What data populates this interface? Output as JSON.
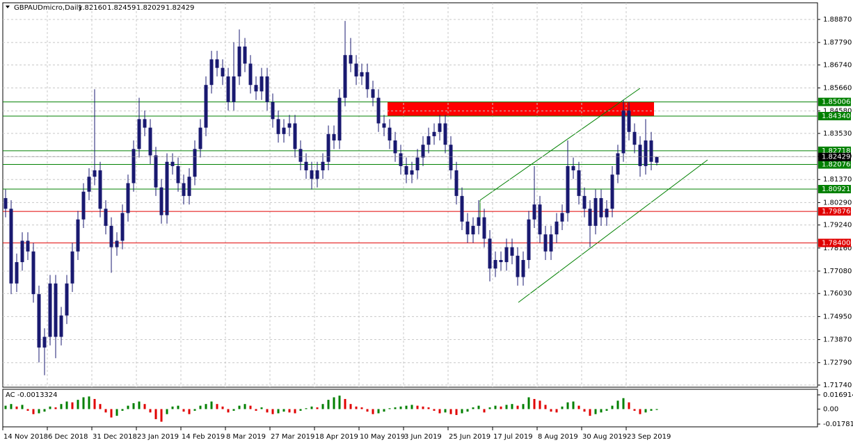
{
  "chart_data": {
    "type": "candlestick",
    "title": "GBPAUDmicro,Daily",
    "header_values": [
      "1.82160",
      "1.82459",
      "1.82029",
      "1.82429"
    ],
    "color": "#191970",
    "open": [
      1.805,
      1.8,
      1.765,
      1.775,
      1.785,
      1.78,
      1.76,
      1.735,
      1.74,
      1.765,
      1.74,
      1.75,
      1.765,
      1.78,
      1.795,
      1.808,
      1.815,
      1.818,
      1.8,
      1.792,
      1.782,
      1.785,
      1.798,
      1.812,
      1.828,
      1.842,
      1.838,
      1.825,
      1.81,
      1.797,
      1.822,
      1.82,
      1.812,
      1.806,
      1.815,
      1.828,
      1.838,
      1.858,
      1.87,
      1.866,
      1.862,
      1.85,
      1.862,
      1.876,
      1.868,
      1.858,
      1.855,
      1.862,
      1.85,
      1.842,
      1.835,
      1.838,
      1.84,
      1.828,
      1.822,
      1.818,
      1.814,
      1.818,
      1.822,
      1.835,
      1.832,
      1.852,
      1.872,
      1.868,
      1.862,
      1.864,
      1.856,
      1.852,
      1.84,
      1.838,
      1.832,
      1.826,
      1.82,
      1.816,
      1.818,
      1.824,
      1.83,
      1.834,
      1.836,
      1.84,
      1.83,
      1.818,
      1.806,
      1.794,
      1.788,
      1.792,
      1.796,
      1.786,
      1.772,
      1.776,
      1.775,
      1.782,
      1.778,
      1.768,
      1.776,
      1.795,
      1.802,
      1.788,
      1.78,
      1.788,
      1.794,
      1.798,
      1.82,
      1.818,
      1.806,
      1.8,
      1.792,
      1.805,
      1.796,
      1.8,
      1.816,
      1.826,
      1.846,
      1.836,
      1.83,
      1.82,
      1.832,
      1.8216
    ],
    "high": [
      1.809,
      1.804,
      1.779,
      1.789,
      1.789,
      1.784,
      1.764,
      1.744,
      1.769,
      1.769,
      1.754,
      1.769,
      1.784,
      1.799,
      1.812,
      1.819,
      1.856,
      1.822,
      1.804,
      1.796,
      1.789,
      1.802,
      1.816,
      1.832,
      1.852,
      1.846,
      1.842,
      1.829,
      1.814,
      1.826,
      1.826,
      1.824,
      1.816,
      1.819,
      1.832,
      1.842,
      1.862,
      1.874,
      1.874,
      1.87,
      1.866,
      1.878,
      1.884,
      1.88,
      1.872,
      1.862,
      1.866,
      1.866,
      1.854,
      1.846,
      1.842,
      1.844,
      1.844,
      1.832,
      1.826,
      1.822,
      1.822,
      1.826,
      1.839,
      1.839,
      1.856,
      1.888,
      1.88,
      1.872,
      1.868,
      1.868,
      1.86,
      1.856,
      1.844,
      1.842,
      1.836,
      1.83,
      1.824,
      1.822,
      1.828,
      1.834,
      1.838,
      1.84,
      1.844,
      1.844,
      1.834,
      1.822,
      1.81,
      1.798,
      1.796,
      1.804,
      1.8,
      1.79,
      1.78,
      1.78,
      1.786,
      1.786,
      1.782,
      1.78,
      1.799,
      1.82,
      1.806,
      1.792,
      1.792,
      1.798,
      1.802,
      1.832,
      1.824,
      1.822,
      1.81,
      1.804,
      1.809,
      1.809,
      1.804,
      1.82,
      1.83,
      1.851,
      1.85,
      1.84,
      1.834,
      1.842,
      1.836,
      1.82459
    ],
    "low": [
      1.796,
      1.76,
      1.761,
      1.771,
      1.776,
      1.756,
      1.728,
      1.722,
      1.736,
      1.73,
      1.736,
      1.746,
      1.761,
      1.776,
      1.791,
      1.804,
      1.811,
      1.796,
      1.788,
      1.77,
      1.778,
      1.781,
      1.794,
      1.808,
      1.824,
      1.834,
      1.821,
      1.806,
      1.793,
      1.793,
      1.816,
      1.808,
      1.802,
      1.802,
      1.811,
      1.824,
      1.834,
      1.854,
      1.862,
      1.858,
      1.846,
      1.846,
      1.858,
      1.864,
      1.854,
      1.851,
      1.851,
      1.846,
      1.838,
      1.831,
      1.831,
      1.834,
      1.824,
      1.818,
      1.814,
      1.809,
      1.81,
      1.814,
      1.818,
      1.828,
      1.828,
      1.848,
      1.864,
      1.858,
      1.858,
      1.852,
      1.848,
      1.836,
      1.834,
      1.828,
      1.822,
      1.816,
      1.812,
      1.812,
      1.814,
      1.82,
      1.826,
      1.83,
      1.832,
      1.826,
      1.814,
      1.802,
      1.79,
      1.784,
      1.784,
      1.788,
      1.782,
      1.766,
      1.768,
      1.771,
      1.771,
      1.774,
      1.764,
      1.764,
      1.772,
      1.791,
      1.784,
      1.776,
      1.776,
      1.784,
      1.79,
      1.794,
      1.814,
      1.802,
      1.796,
      1.782,
      1.788,
      1.792,
      1.792,
      1.796,
      1.812,
      1.822,
      1.832,
      1.826,
      1.815,
      1.816,
      1.818,
      1.82029
    ],
    "close": [
      1.8,
      1.765,
      1.775,
      1.785,
      1.78,
      1.76,
      1.735,
      1.74,
      1.765,
      1.74,
      1.75,
      1.765,
      1.78,
      1.795,
      1.808,
      1.815,
      1.818,
      1.8,
      1.792,
      1.782,
      1.785,
      1.798,
      1.812,
      1.828,
      1.842,
      1.838,
      1.825,
      1.81,
      1.797,
      1.822,
      1.82,
      1.812,
      1.806,
      1.815,
      1.828,
      1.838,
      1.858,
      1.87,
      1.866,
      1.862,
      1.85,
      1.862,
      1.876,
      1.868,
      1.858,
      1.855,
      1.862,
      1.85,
      1.842,
      1.835,
      1.838,
      1.84,
      1.828,
      1.822,
      1.818,
      1.814,
      1.818,
      1.822,
      1.835,
      1.832,
      1.852,
      1.872,
      1.868,
      1.862,
      1.864,
      1.856,
      1.852,
      1.84,
      1.838,
      1.832,
      1.826,
      1.82,
      1.816,
      1.818,
      1.824,
      1.83,
      1.834,
      1.836,
      1.84,
      1.83,
      1.818,
      1.806,
      1.794,
      1.788,
      1.792,
      1.796,
      1.786,
      1.772,
      1.776,
      1.775,
      1.782,
      1.778,
      1.768,
      1.776,
      1.795,
      1.802,
      1.788,
      1.78,
      1.788,
      1.794,
      1.798,
      1.82,
      1.818,
      1.806,
      1.8,
      1.792,
      1.805,
      1.796,
      1.8,
      1.816,
      1.826,
      1.846,
      1.836,
      1.83,
      1.82,
      1.832,
      1.822,
      1.82429
    ],
    "xlim": [
      -0.5,
      145.875
    ],
    "xticks": [
      {
        "value": -0.5,
        "label": "14 Nov 2018"
      },
      {
        "value": 7.5,
        "label": "6 Dec 2018"
      },
      {
        "value": 15.5,
        "label": "31 Dec 2018"
      },
      {
        "value": 23.5,
        "label": "23 Jan 2019"
      },
      {
        "value": 31.5,
        "label": "14 Feb 2019"
      },
      {
        "value": 39.5,
        "label": "8 Mar 2019"
      },
      {
        "value": 47.5,
        "label": "27 Mar 2019"
      },
      {
        "value": 55.5,
        "label": "18 Apr 2019"
      },
      {
        "value": 63.5,
        "label": "10 May 2019"
      },
      {
        "value": 71.5,
        "label": "3 Jun 2019"
      },
      {
        "value": 79.5,
        "label": "25 Jun 2019"
      },
      {
        "value": 87.5,
        "label": "17 Jul 2019"
      },
      {
        "value": 95.5,
        "label": "8 Aug 2019"
      },
      {
        "value": 103.5,
        "label": "30 Aug 2019"
      },
      {
        "value": 111.5,
        "label": "23 Sep 2019"
      }
    ],
    "ylim": [
      1.7164,
      1.8965
    ],
    "yticks": [
      {
        "value": 1.8887,
        "label": "1.88870"
      },
      {
        "value": 1.8779,
        "label": "1.87790"
      },
      {
        "value": 1.8674,
        "label": "1.86740"
      },
      {
        "value": 1.8566,
        "label": "1.85660"
      },
      {
        "value": 1.8458,
        "label": "1.84580"
      },
      {
        "value": 1.8353,
        "label": "1.83530"
      },
      {
        "value": 1.8245,
        "label": "1.82450"
      },
      {
        "value": 1.8137,
        "label": "1.81370"
      },
      {
        "value": 1.8029,
        "label": "1.80290"
      },
      {
        "value": 1.7924,
        "label": "1.79240"
      },
      {
        "value": 1.7816,
        "label": "1.78160"
      },
      {
        "value": 1.7708,
        "label": "1.77080"
      },
      {
        "value": 1.7603,
        "label": "1.76030"
      },
      {
        "value": 1.7495,
        "label": "1.74950"
      },
      {
        "value": 1.7387,
        "label": "1.73870"
      },
      {
        "value": 1.7279,
        "label": "1.72790"
      },
      {
        "value": 1.7174,
        "label": "1.71740"
      }
    ],
    "grid": true,
    "levels": [
      {
        "value": 1.85006,
        "color": "#008000"
      },
      {
        "value": 1.8434,
        "label": "1.84340",
        "color": "#008000"
      },
      {
        "value": 1.82718,
        "color": "#008000"
      },
      {
        "value": 1.82076,
        "color": "#008000"
      },
      {
        "value": 1.80921,
        "color": "#008000"
      },
      {
        "value": 1.79876,
        "color": "#e00000"
      },
      {
        "value": 1.784,
        "label": "1.78400",
        "color": "#e00000"
      }
    ],
    "current_price": 1.82429,
    "indicator": {
      "label": "AC -0.0013324",
      "up_color": "#008000",
      "down_color": "#e00000",
      "ylim": [
        -0.0203,
        0.0227
      ],
      "yticks": [
        0.0169146,
        {
          "value": 0,
          "label": "0.00"
        },
        -0.0178136
      ],
      "values": [
        0.004,
        0.006,
        0.003,
        0.005,
        -0.002,
        -0.006,
        -0.005,
        -0.003,
        0.003,
        0.002,
        0.006,
        0.009,
        0.008,
        0.011,
        0.014,
        0.015,
        0.012,
        0.006,
        -0.004,
        -0.01,
        -0.008,
        -0.002,
        0.004,
        0.007,
        0.009,
        0.006,
        -0.004,
        -0.012,
        -0.015,
        -0.006,
        0.003,
        0.004,
        -0.003,
        -0.006,
        -0.002,
        0.004,
        0.006,
        0.009,
        0.006,
        0.003,
        -0.004,
        -0.002,
        0.004,
        0.006,
        0.004,
        -0.002,
        0.002,
        -0.004,
        -0.006,
        -0.005,
        -0.003,
        -0.004,
        -0.005,
        -0.002,
        0.001,
        0.003,
        0.002,
        0.006,
        0.011,
        0.014,
        0.016,
        0.012,
        0.006,
        0.003,
        0.002,
        -0.003,
        -0.006,
        -0.005,
        -0.003,
        0.001,
        0.002,
        0.003,
        0.004,
        0.005,
        0.004,
        0.003,
        0.002,
        -0.002,
        -0.005,
        -0.004,
        -0.006,
        -0.007,
        -0.005,
        -0.003,
        0.002,
        0.004,
        -0.004,
        0.002,
        0.004,
        0.003,
        0.005,
        0.006,
        0.004,
        0.006,
        0.014,
        0.012,
        0.01,
        0.005,
        -0.003,
        -0.004,
        0.003,
        0.008,
        0.009,
        0.004,
        -0.003,
        -0.008,
        -0.006,
        -0.004,
        -0.002,
        0.004,
        0.01,
        0.013,
        0.008,
        -0.002,
        -0.006,
        -0.004,
        -0.002,
        -0.001
      ]
    }
  }
}
